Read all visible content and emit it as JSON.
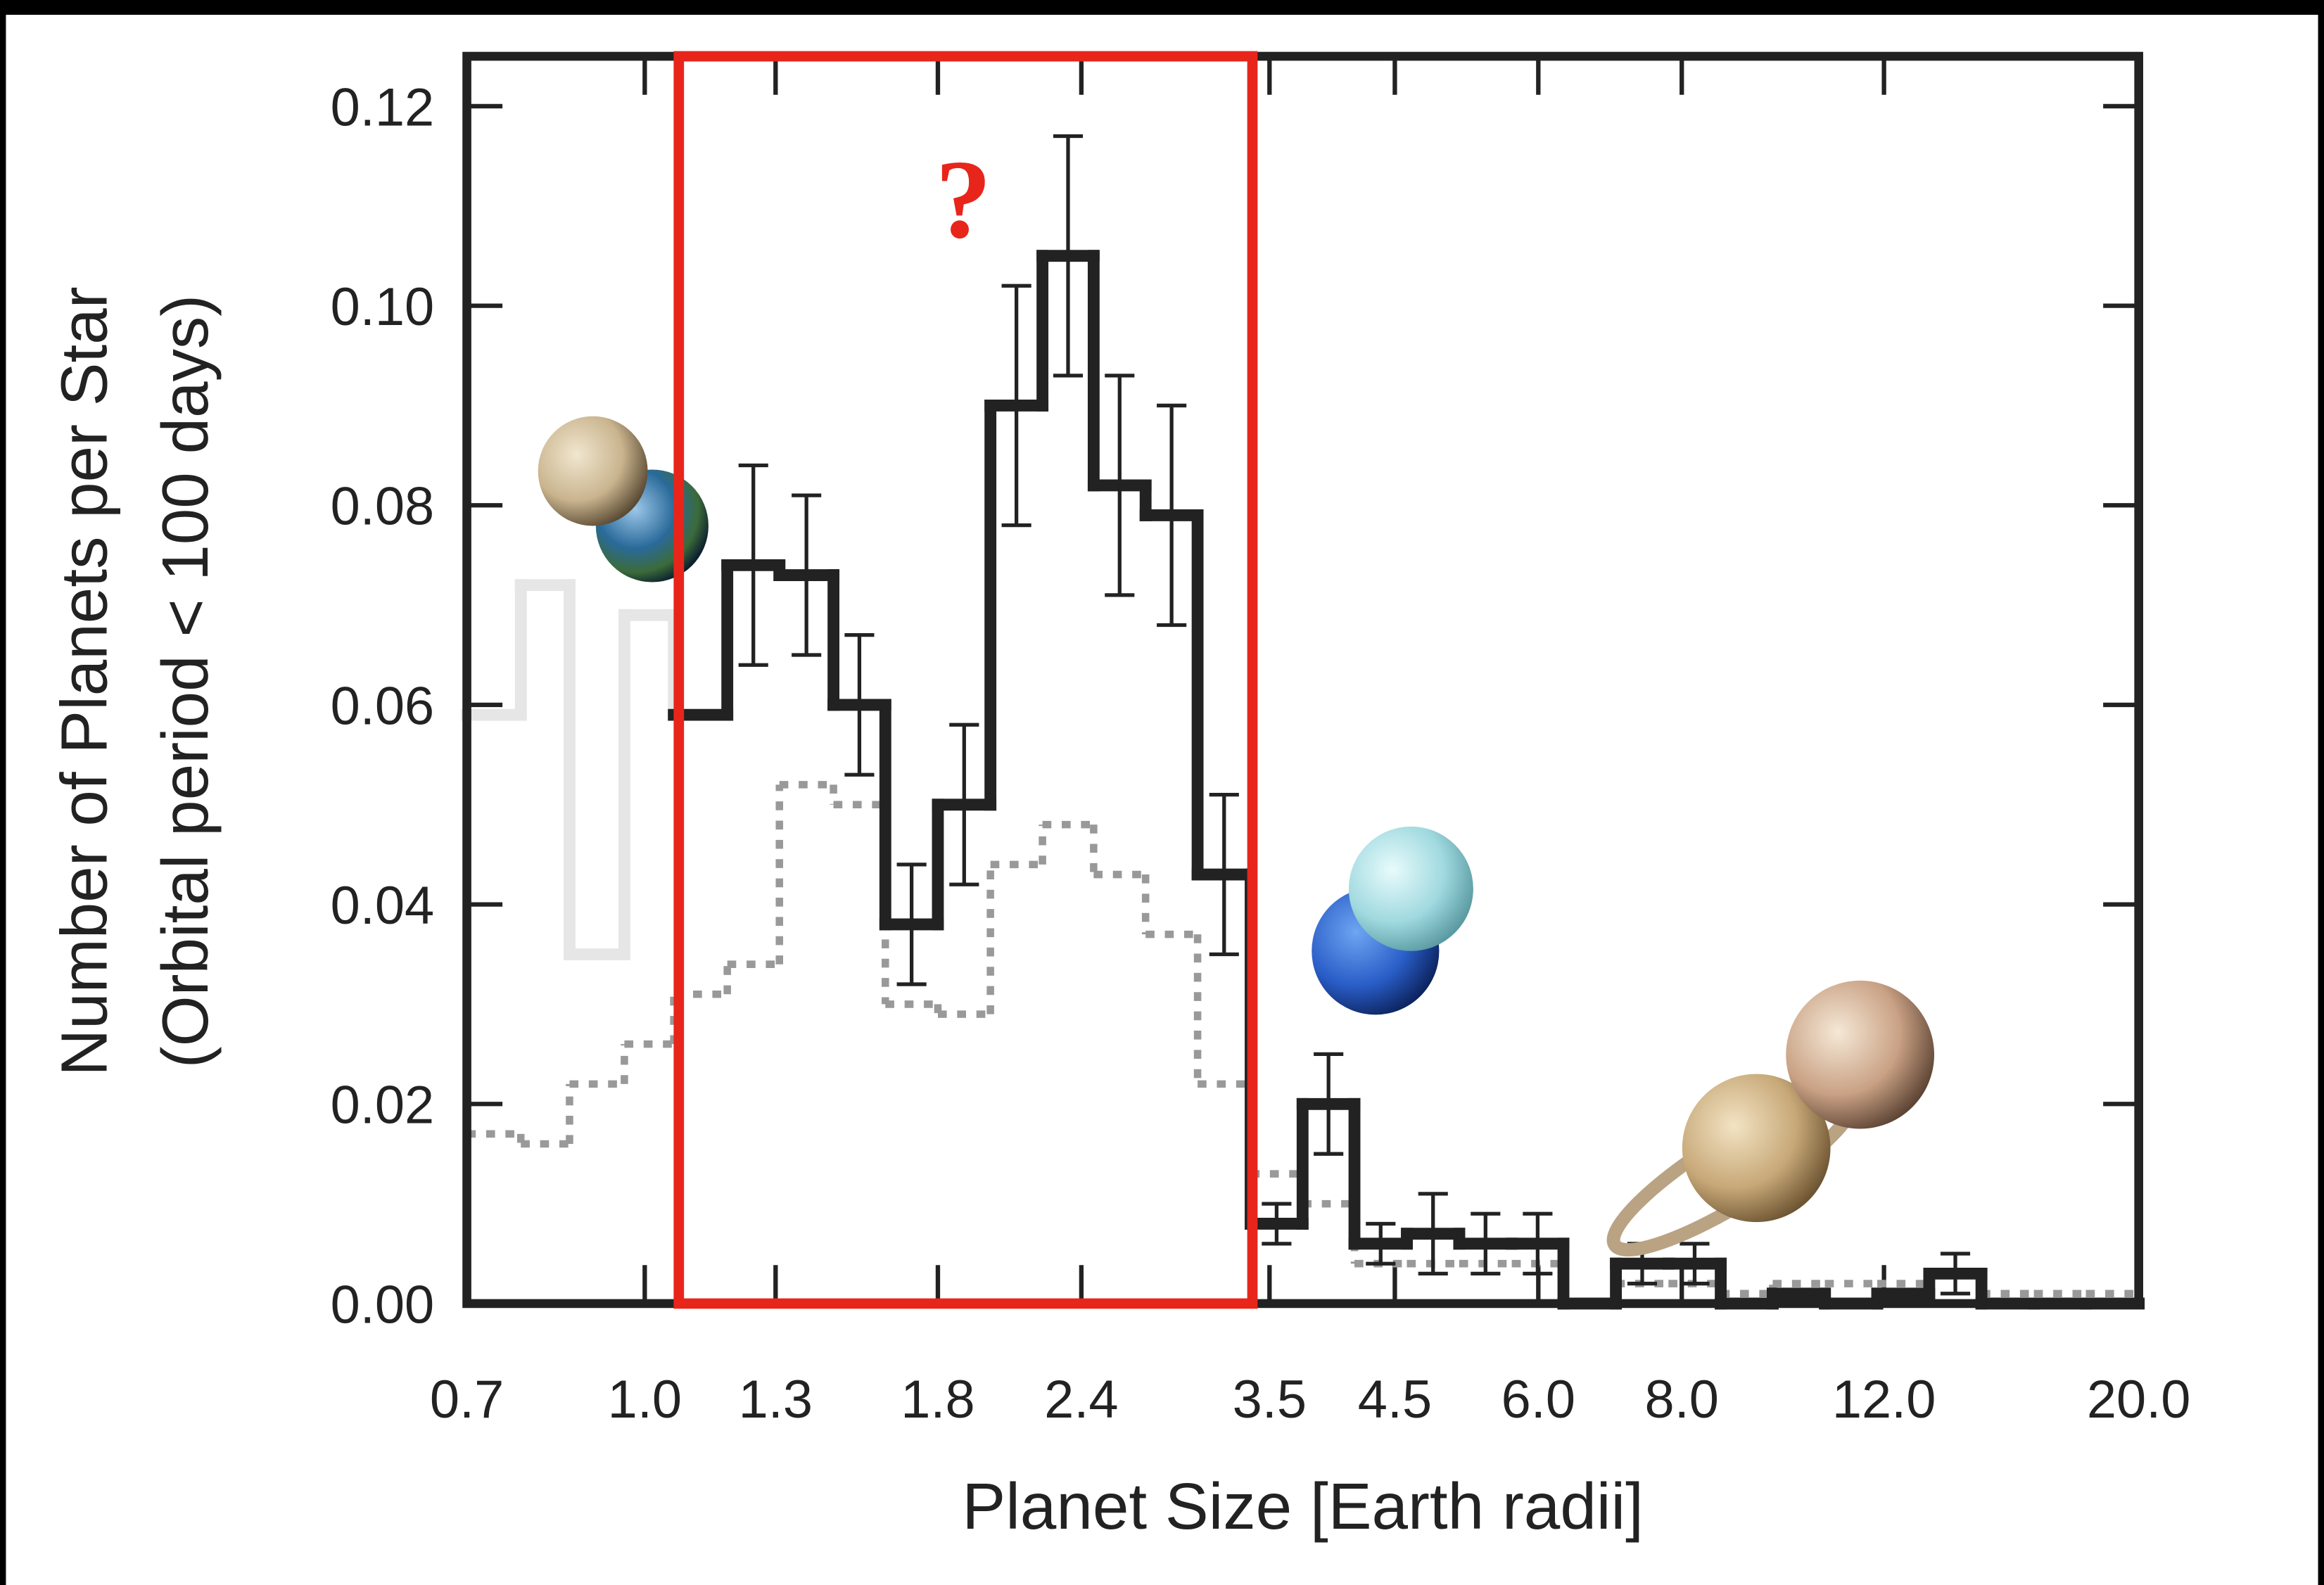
{
  "chart_data": {
    "type": "histogram",
    "xlabel": "Planet Size [Earth radii]",
    "ylabel": [
      "Number of Planets per Star",
      "(Orbital period < 100 days)"
    ],
    "annotation": "?",
    "xscale": "log",
    "xlim": [
      0.7,
      20.0
    ],
    "ylim": [
      0,
      0.125
    ],
    "xticks": [
      0.7,
      {
        "value": 1.0,
        "label": "1.0"
      },
      1.3,
      1.8,
      2.4,
      3.5,
      4.5,
      {
        "value": 6.0,
        "label": "6.0"
      },
      {
        "value": 8.0,
        "label": "8.0"
      },
      {
        "value": 12.0,
        "label": "12.0"
      },
      {
        "value": 20.0,
        "label": "20.0"
      }
    ],
    "yticks": [
      {
        "value": 0,
        "label": "0.00"
      },
      0.02,
      0.04,
      0.06,
      0.08,
      {
        "value": 0.1,
        "label": "0.10"
      },
      0.12
    ],
    "bins": [
      0.7,
      0.78,
      0.86,
      0.96,
      1.06,
      1.18,
      1.31,
      1.46,
      1.62,
      1.8,
      2.0,
      2.22,
      2.46,
      2.73,
      3.03,
      3.37,
      3.74,
      4.15,
      4.61,
      5.12,
      5.69,
      6.31,
      7.01,
      7.79,
      8.65,
      9.6,
      10.66,
      11.84,
      13.14,
      14.59,
      16.21,
      17.99,
      20.0
    ],
    "series": [
      {
        "color": "#999999",
        "linestyle": "dotted",
        "values": [
          0.017,
          0.016,
          0.022,
          0.026,
          0.031,
          0.034,
          0.052,
          0.05,
          0.03,
          0.029,
          0.044,
          0.048,
          0.043,
          0.037,
          0.022,
          0.013,
          0.01,
          0.004,
          0.004,
          0.004,
          0.004,
          0.0,
          0.002,
          0.002,
          0.001,
          0.002,
          0.002,
          0.002,
          0.003,
          0.001,
          0.001,
          0.001
        ]
      },
      {
        "color": "#e6e6e6",
        "linestyle": "solid",
        "values": [
          0.059,
          0.072,
          0.035,
          0.069,
          0.059,
          null,
          null,
          null,
          null,
          null,
          null,
          null,
          null,
          null,
          null,
          null,
          null,
          null,
          null,
          null,
          null,
          null,
          null,
          null,
          null,
          null,
          null,
          null,
          null,
          null,
          null,
          null
        ]
      },
      {
        "color": "#222222",
        "linestyle": "solid",
        "values": [
          null,
          null,
          null,
          null,
          0.059,
          0.074,
          0.073,
          0.06,
          0.038,
          0.05,
          0.09,
          0.105,
          0.082,
          0.079,
          0.043,
          0.008,
          0.02,
          0.006,
          0.007,
          0.006,
          0.006,
          0.0,
          0.004,
          0.004,
          0.0,
          0.001,
          0.0,
          0.001,
          0.003,
          0.0,
          0.0,
          0.0
        ],
        "errors": [
          null,
          null,
          null,
          null,
          null,
          0.01,
          0.008,
          0.007,
          0.006,
          0.008,
          0.012,
          0.012,
          0.011,
          0.011,
          0.008,
          0.002,
          0.005,
          0.002,
          0.004,
          0.003,
          0.003,
          null,
          0.002,
          0.002,
          null,
          null,
          null,
          null,
          0.002,
          null,
          null,
          null
        ]
      }
    ]
  }
}
